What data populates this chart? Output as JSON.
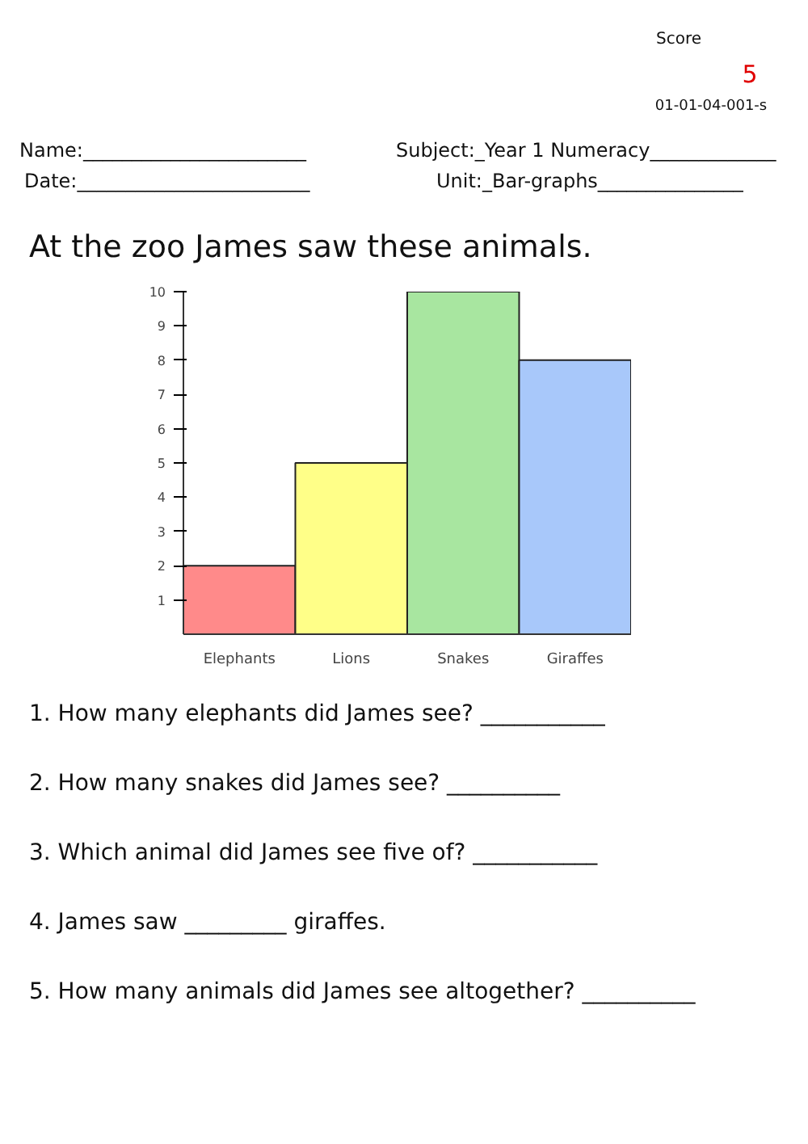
{
  "chart_data": {
    "type": "bar",
    "title": "At the zoo James saw these animals.",
    "categories": [
      "Elephants",
      "Lions",
      "Snakes",
      "Giraffes"
    ],
    "values": [
      2,
      5,
      10,
      8
    ],
    "colors": [
      "#ff8a8a",
      "#ffff88",
      "#a8e6a0",
      "#a8c8fa"
    ],
    "ylim": [
      0,
      10
    ],
    "yticks": [
      1,
      2,
      3,
      4,
      5,
      6,
      7,
      8,
      9,
      10
    ],
    "grid": false,
    "annotations": [
      "Score",
      "5",
      "01-01-04-001-s",
      "Name:_______________________",
      "Date:________________________",
      "Subject:_Year 1 Numeracy_____________",
      "Unit:_Bar-graphs_______________",
      "1. How many elephants did James see? ___________",
      "2. How many snakes did James see? __________",
      "3. Which animal did James see five of? ___________",
      "4. James saw _________ giraffes.",
      "5. How many animals did James see altogether? __________"
    ]
  }
}
